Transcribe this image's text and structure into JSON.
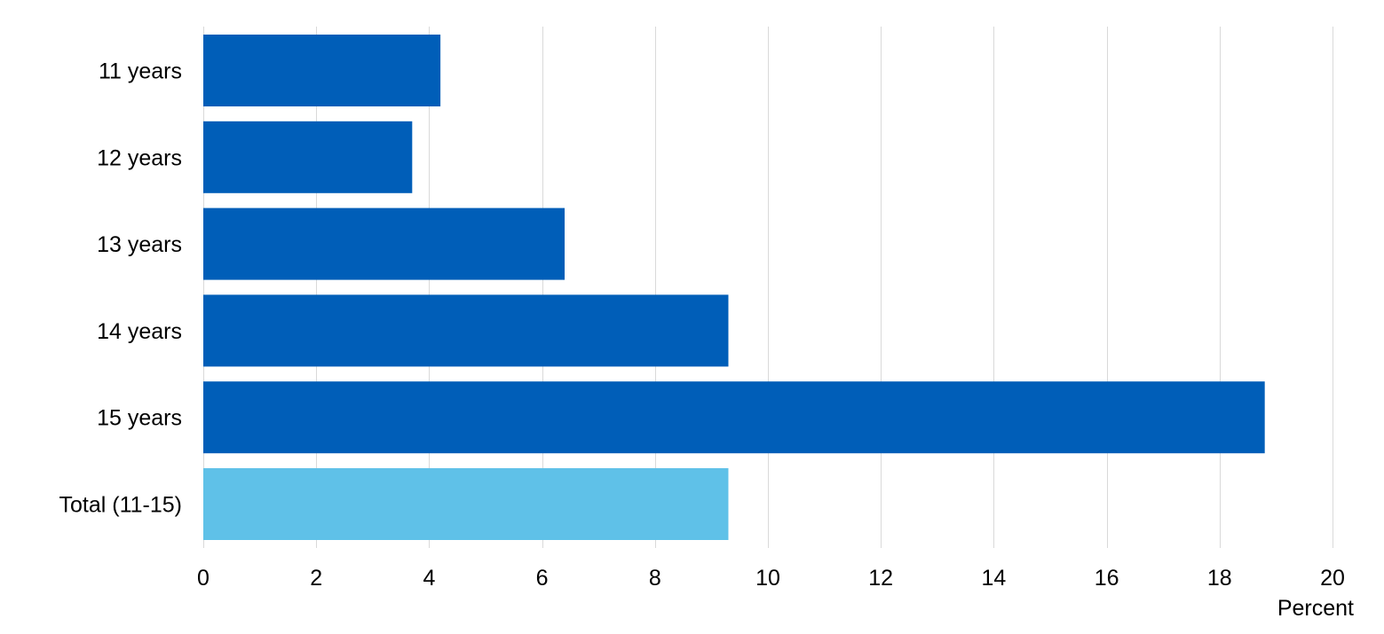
{
  "chart_data": {
    "type": "bar",
    "orientation": "horizontal",
    "categories": [
      "11 years",
      "12 years",
      "13 years",
      "14 years",
      "15 years",
      "Total (11-15)"
    ],
    "values": [
      4.2,
      3.7,
      6.4,
      9.3,
      18.8,
      9.3
    ],
    "bar_colors": [
      "#005eb8",
      "#005eb8",
      "#005eb8",
      "#005eb8",
      "#005eb8",
      "#5fc1e8"
    ],
    "xlim": [
      0,
      20
    ],
    "xticks": [
      0,
      2,
      4,
      6,
      8,
      10,
      12,
      14,
      16,
      18,
      20
    ],
    "xlabel": "Percent",
    "ylabel": "",
    "title": "",
    "grid": "vertical",
    "legend": "none"
  }
}
